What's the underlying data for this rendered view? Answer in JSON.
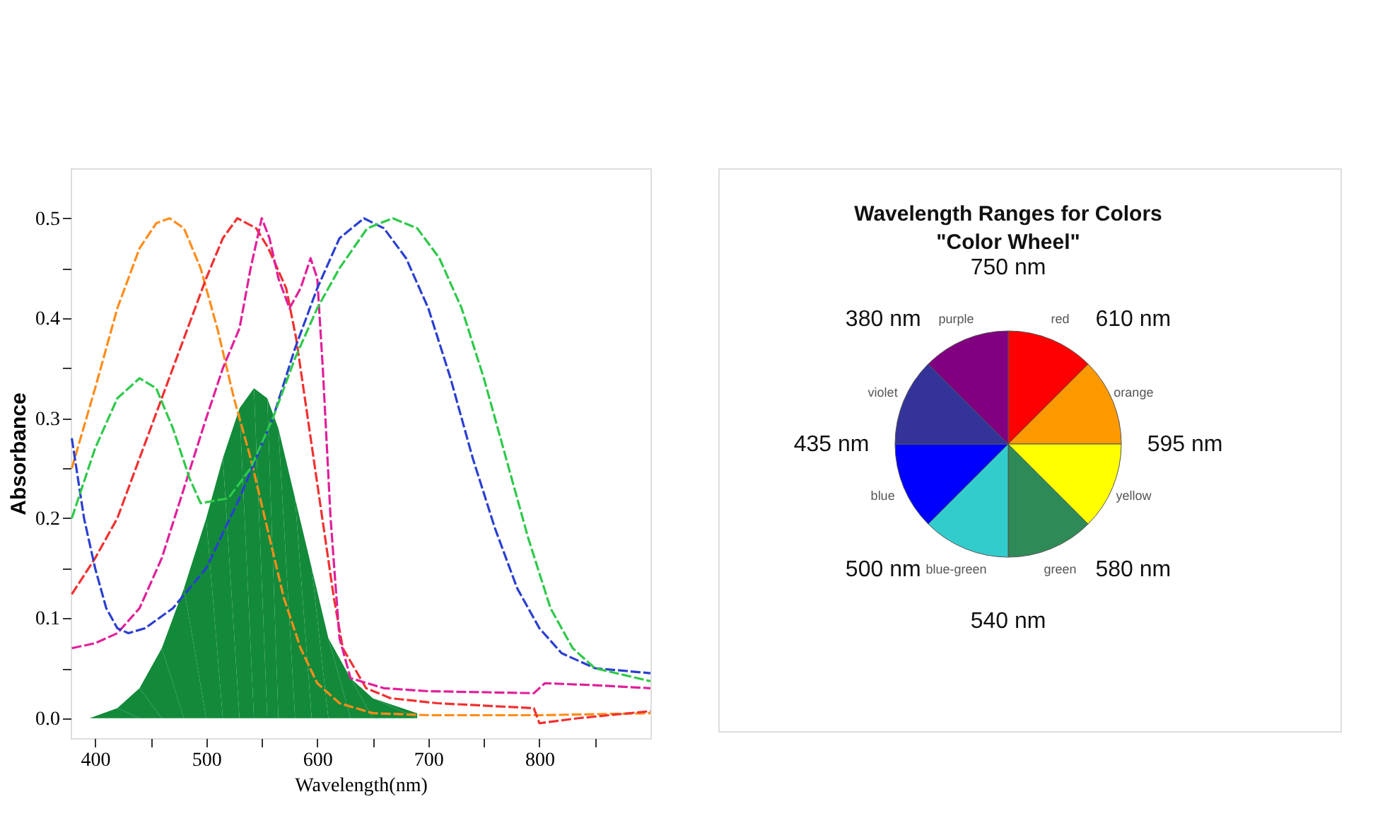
{
  "chart_data": [
    {
      "type": "line",
      "xlabel": "Wavelength(nm)",
      "ylabel": "Absorbance",
      "xlim": [
        378,
        900
      ],
      "ylim": [
        -0.02,
        0.55
      ],
      "xticks": [
        400,
        {
          "value": 450,
          "label": null
        },
        500,
        {
          "value": 550,
          "label": null
        },
        600,
        {
          "value": 650,
          "label": null
        },
        700,
        {
          "value": 750,
          "label": null
        },
        800,
        {
          "value": 850,
          "label": null
        }
      ],
      "yticks": [
        {
          "value": 0,
          "label": "0.0"
        },
        {
          "value": 0.05,
          "label": null
        },
        {
          "value": 0.1,
          "label": "0.1"
        },
        {
          "value": 0.15,
          "label": null
        },
        {
          "value": 0.2,
          "label": "0.2"
        },
        {
          "value": 0.25,
          "label": null
        },
        {
          "value": 0.3,
          "label": "0.3"
        },
        {
          "value": 0.35,
          "label": null
        },
        {
          "value": 0.4,
          "label": "0.4"
        },
        {
          "value": 0.45,
          "label": null
        },
        {
          "value": 0.5,
          "label": "0.5"
        }
      ],
      "grid": false,
      "line_style": "dashed",
      "series": [
        {
          "type": "area",
          "color": "#128a3a",
          "x": [
            395,
            420,
            440,
            460,
            480,
            500,
            515,
            530,
            543,
            555,
            565,
            580,
            595,
            610,
            630,
            650,
            690
          ],
          "values": [
            0,
            0.01,
            0.03,
            0.07,
            0.13,
            0.2,
            0.26,
            0.31,
            0.33,
            0.32,
            0.29,
            0.22,
            0.15,
            0.08,
            0.04,
            0.02,
            0.005
          ]
        },
        {
          "color": "#ff8c1a",
          "x": [
            379,
            400,
            420,
            440,
            455,
            467,
            480,
            495,
            510,
            525,
            540,
            555,
            570,
            585,
            600,
            620,
            650,
            700,
            800,
            900
          ],
          "values": [
            0.25,
            0.33,
            0.41,
            0.47,
            0.495,
            0.5,
            0.49,
            0.45,
            0.39,
            0.32,
            0.26,
            0.19,
            0.12,
            0.07,
            0.035,
            0.015,
            0.005,
            0.003,
            0.003,
            0.005
          ]
        },
        {
          "color": "#f03030",
          "x": [
            379,
            400,
            420,
            440,
            460,
            480,
            500,
            515,
            528,
            545,
            556,
            572,
            581,
            598,
            615,
            623,
            644,
            666,
            708,
            795,
            800,
            835,
            900
          ],
          "values": [
            0.124,
            0.16,
            0.2,
            0.26,
            0.32,
            0.38,
            0.44,
            0.48,
            0.5,
            0.49,
            0.47,
            0.43,
            0.38,
            0.25,
            0.12,
            0.07,
            0.03,
            0.02,
            0.015,
            0.01,
            -0.005,
            0,
            0.007
          ]
        },
        {
          "color": "#e0209a",
          "x": [
            379,
            400,
            420,
            440,
            460,
            480,
            500,
            515,
            530,
            540,
            550,
            557,
            565,
            575,
            585,
            594,
            600,
            605,
            612,
            620,
            630,
            660,
            700,
            795,
            805,
            850,
            900
          ],
          "values": [
            0.07,
            0.075,
            0.085,
            0.11,
            0.16,
            0.23,
            0.3,
            0.35,
            0.39,
            0.45,
            0.5,
            0.48,
            0.44,
            0.41,
            0.43,
            0.46,
            0.44,
            0.35,
            0.2,
            0.08,
            0.04,
            0.03,
            0.027,
            0.025,
            0.035,
            0.033,
            0.03
          ]
        },
        {
          "color": "#2a3fd0",
          "x": [
            379,
            390,
            400,
            410,
            420,
            430,
            445,
            470,
            500,
            530,
            560,
            580,
            600,
            620,
            642,
            660,
            680,
            700,
            720,
            740,
            760,
            780,
            800,
            820,
            850,
            900
          ],
          "values": [
            0.28,
            0.2,
            0.15,
            0.11,
            0.09,
            0.085,
            0.09,
            0.11,
            0.15,
            0.22,
            0.3,
            0.37,
            0.43,
            0.48,
            0.5,
            0.49,
            0.46,
            0.41,
            0.34,
            0.26,
            0.19,
            0.13,
            0.09,
            0.065,
            0.05,
            0.045
          ]
        },
        {
          "color": "#2ec94a",
          "x": [
            379,
            400,
            420,
            440,
            455,
            470,
            485,
            495,
            520,
            540,
            560,
            580,
            600,
            620,
            645,
            668,
            690,
            710,
            730,
            750,
            770,
            790,
            810,
            830,
            850,
            900
          ],
          "values": [
            0.2,
            0.27,
            0.32,
            0.34,
            0.33,
            0.29,
            0.24,
            0.215,
            0.22,
            0.25,
            0.3,
            0.36,
            0.41,
            0.45,
            0.49,
            0.5,
            0.49,
            0.46,
            0.41,
            0.34,
            0.26,
            0.18,
            0.11,
            0.07,
            0.05,
            0.037
          ]
        }
      ]
    },
    {
      "type": "pie",
      "title": "Wavelength Ranges for Colors\n\"Color Wheel\"",
      "categories": [
        "red",
        "orange",
        "yellow",
        "green",
        "blue-green",
        "blue",
        "violet",
        "purple"
      ],
      "values": [
        12.5,
        12.5,
        12.5,
        12.5,
        12.5,
        12.5,
        12.5,
        12.5
      ],
      "colors": [
        "#ff0000",
        "#ff9900",
        "#ffff00",
        "#2e8b57",
        "#33cccc",
        "#0000ff",
        "#333399",
        "#800080"
      ],
      "annotations": [
        "750 nm",
        "610 nm",
        "595 nm",
        "580 nm",
        "540 nm",
        "500 nm",
        "435 nm",
        "380 nm"
      ]
    }
  ]
}
